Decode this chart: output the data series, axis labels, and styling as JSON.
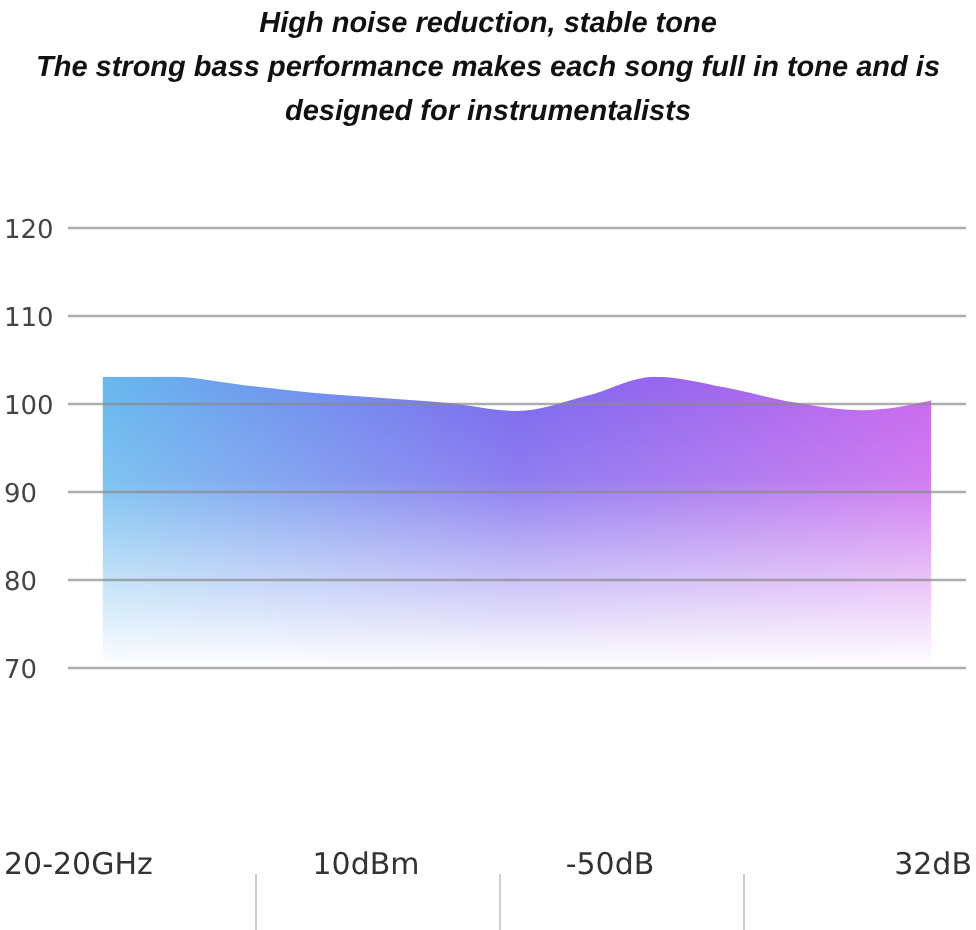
{
  "chart_data": {
    "type": "area",
    "title": "High noise reduction, stable tone",
    "subtitle": "The strong bass performance makes each song full in tone and is designed for instrumentalists",
    "categories": [
      null,
      null,
      null,
      null,
      null,
      null,
      null,
      null,
      null,
      null,
      null,
      null,
      null
    ],
    "series": [
      {
        "color": "#7a66ee",
        "values": [
          103.1,
          103.1,
          102.2,
          101.3,
          100.7,
          100.1,
          99.2,
          100.9,
          103.1,
          101.9,
          100.2,
          99.3,
          100.4
        ]
      }
    ],
    "ylim": [
      70,
      120
    ],
    "yticks": [
      70,
      80,
      90,
      100,
      110,
      120
    ],
    "grid": "y",
    "tick_labels": "y",
    "annotations": [
      "20-20GHz",
      "10dBm",
      "-50dB",
      "32dB"
    ]
  }
}
